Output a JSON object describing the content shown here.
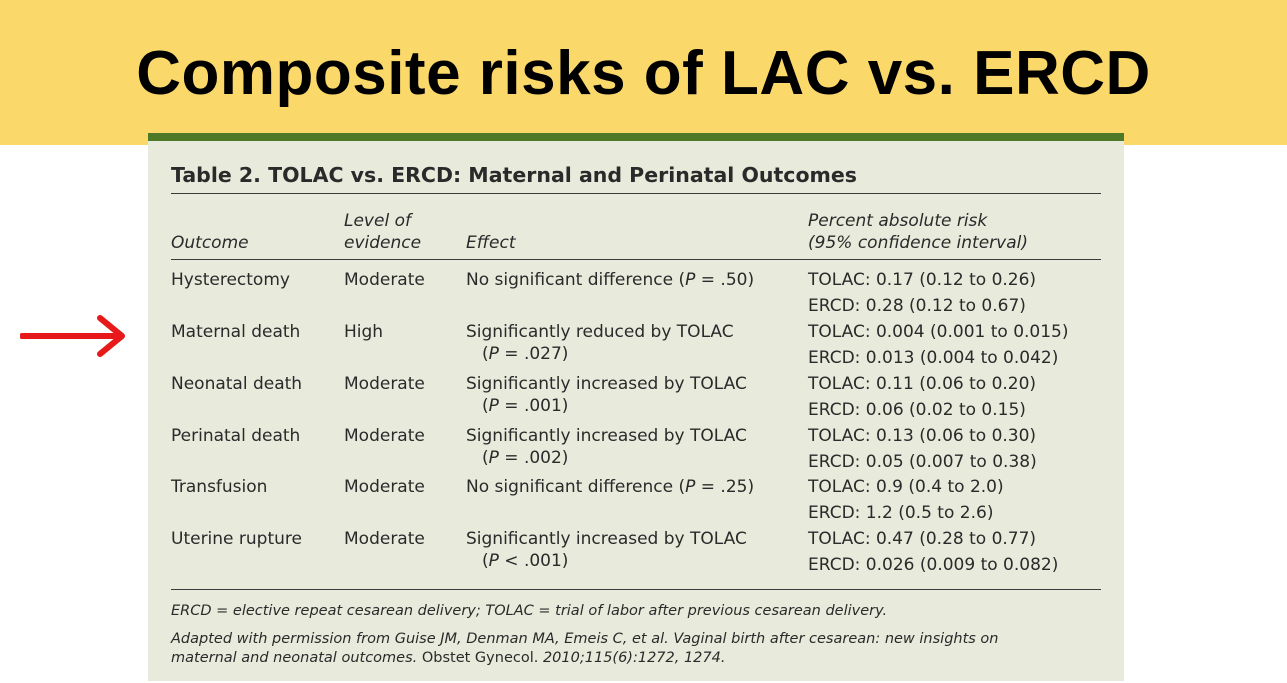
{
  "slide": {
    "title": "Composite risks of LAC vs. ERCD"
  },
  "colors": {
    "banner": "#fbd86a",
    "panel": "#e8eadc",
    "accent_bar": "#4e7a27",
    "arrow": "#e8191a"
  },
  "icons": {
    "pointer": "arrow-right-icon"
  },
  "table": {
    "title": "Table 2. TOLAC vs. ERCD: Maternal and Perinatal Outcomes",
    "headers": {
      "outcome": "Outcome",
      "evidence_l1": "Level of",
      "evidence_l2": "evidence",
      "effect": "Effect",
      "risk_l1": "Percent absolute risk",
      "risk_l2": "(95% confidence interval)"
    },
    "rows": [
      {
        "outcome": "Hysterectomy",
        "evidence": "Moderate",
        "effect_l1_pre": "No significant difference (",
        "effect_l1_p": "P",
        "effect_l1_post": " = .50)",
        "effect_l2_pre": "",
        "effect_l2_p": "",
        "effect_l2_post": "",
        "tolac": "TOLAC: 0.17 (0.12 to 0.26)",
        "ercd": "ERCD: 0.28 (0.12 to 0.67)"
      },
      {
        "outcome": "Maternal death",
        "evidence": "High",
        "effect_l1_pre": "Significantly reduced by TOLAC",
        "effect_l1_p": "",
        "effect_l1_post": "",
        "effect_l2_pre": "(",
        "effect_l2_p": "P",
        "effect_l2_post": " = .027)",
        "tolac": "TOLAC: 0.004 (0.001 to 0.015)",
        "ercd": "ERCD: 0.013 (0.004 to 0.042)"
      },
      {
        "outcome": "Neonatal death",
        "evidence": "Moderate",
        "effect_l1_pre": "Significantly increased by TOLAC",
        "effect_l1_p": "",
        "effect_l1_post": "",
        "effect_l2_pre": "(",
        "effect_l2_p": "P",
        "effect_l2_post": " = .001)",
        "tolac": "TOLAC: 0.11 (0.06 to 0.20)",
        "ercd": "ERCD: 0.06 (0.02 to 0.15)"
      },
      {
        "outcome": "Perinatal death",
        "evidence": "Moderate",
        "effect_l1_pre": "Significantly increased by TOLAC",
        "effect_l1_p": "",
        "effect_l1_post": "",
        "effect_l2_pre": "(",
        "effect_l2_p": "P",
        "effect_l2_post": " = .002)",
        "tolac": "TOLAC: 0.13 (0.06 to 0.30)",
        "ercd": "ERCD: 0.05 (0.007 to 0.38)"
      },
      {
        "outcome": "Transfusion",
        "evidence": "Moderate",
        "effect_l1_pre": "No significant difference (",
        "effect_l1_p": "P",
        "effect_l1_post": " = .25)",
        "effect_l2_pre": "",
        "effect_l2_p": "",
        "effect_l2_post": "",
        "tolac": "TOLAC: 0.9 (0.4 to 2.0)",
        "ercd": "ERCD: 1.2 (0.5 to 2.6)"
      },
      {
        "outcome": "Uterine rupture",
        "evidence": "Moderate",
        "effect_l1_pre": "Significantly increased by TOLAC",
        "effect_l1_p": "",
        "effect_l1_post": "",
        "effect_l2_pre": "(",
        "effect_l2_p": "P",
        "effect_l2_post": " < .001)",
        "tolac": "TOLAC: 0.47 (0.28 to 0.77)",
        "ercd": "ERCD: 0.026 (0.009 to 0.082)"
      }
    ],
    "footnote_abbrev": "ERCD = elective repeat cesarean delivery; TOLAC = trial of labor after previous cesarean delivery.",
    "source": {
      "line1": "Adapted with permission from Guise JM, Denman MA, Emeis C, et al. Vaginal birth after cesarean: new insights on",
      "line2_italic": "maternal and neonatal outcomes.",
      "line2_journal": " Obstet Gynecol.",
      "line2_cite": " 2010;115(6):1272, 1274."
    }
  }
}
